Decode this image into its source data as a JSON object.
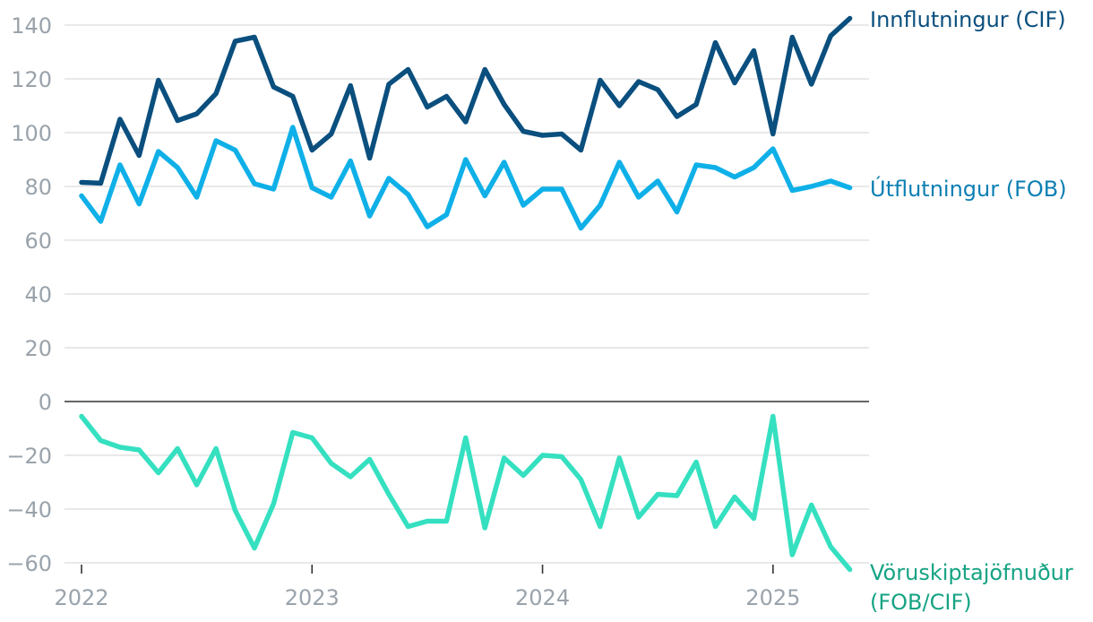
{
  "chart_data": {
    "type": "line",
    "title": "",
    "xlabel": "",
    "ylabel": "",
    "ylim": [
      -60,
      140
    ],
    "yticks": [
      140,
      120,
      100,
      80,
      60,
      40,
      20,
      0,
      -20,
      -40,
      -60
    ],
    "ytick_labels": [
      "140",
      "120",
      "100",
      "80",
      "60",
      "40",
      "20",
      "0",
      "−20",
      "−40",
      "−60"
    ],
    "xtick_labels": [
      "2022",
      "2023",
      "2024",
      "2025"
    ],
    "x_start": "2022-01",
    "x_end": "2025-05",
    "grid": true,
    "series": [
      {
        "name": "Innflutningur (CIF)",
        "color": "#0a4f7e",
        "values": [
          81.5,
          81.2,
          105,
          91.5,
          119.5,
          104.5,
          107,
          114.5,
          134,
          135.5,
          117,
          113.5,
          93.5,
          99.5,
          117.5,
          90.5,
          118,
          123.5,
          109.5,
          113.5,
          104,
          123.5,
          110.5,
          100.5,
          99,
          99.5,
          93.5,
          119.5,
          110,
          119,
          116,
          106,
          110.5,
          133.5,
          118.5,
          130.5,
          99.5,
          135.5,
          118,
          136,
          142.5
        ]
      },
      {
        "name": "Útflutningur (FOB)",
        "color": "#0fb0e8",
        "values": [
          76.5,
          67,
          88,
          73.5,
          93,
          87,
          76,
          97,
          93.5,
          81,
          79,
          102,
          79.5,
          76,
          89.5,
          69,
          83,
          77,
          65,
          69.5,
          90,
          76.5,
          89,
          73,
          79,
          79,
          64.5,
          73,
          89,
          76,
          82,
          70.5,
          88,
          87,
          83.5,
          87,
          94,
          78.5,
          80,
          82,
          79.5
        ]
      },
      {
        "name": "Vöruskiptajöfnuður (FOB/CIF)",
        "color": "#35e0c0",
        "values": [
          -5.5,
          -14.5,
          -17,
          -18,
          -26.5,
          -17.5,
          -31,
          -17.5,
          -40.5,
          -54.5,
          -38,
          -11.5,
          -13.5,
          -23,
          -28,
          -21.5,
          -34.5,
          -46.5,
          -44.5,
          -44.5,
          -13.5,
          -47,
          -21,
          -27.5,
          -20,
          -20.5,
          -29,
          -46.5,
          -21,
          -43,
          -34.5,
          -35,
          -22.5,
          -46.5,
          -35.5,
          -43.5,
          -5.5,
          -57,
          -38.5,
          -54,
          -62.5
        ]
      }
    ],
    "labels": {
      "innflutningur": "Innflutningur (CIF)",
      "utflutningur": "Útflutningur (FOB)",
      "voruskipti_line1": "Vöruskiptajöfnuður",
      "voruskipti_line2": "(FOB/CIF)"
    },
    "label_colors": {
      "innflutningur": "#0a4f7e",
      "utflutningur": "#0b7fb3",
      "voruskipti": "#15a383"
    }
  }
}
